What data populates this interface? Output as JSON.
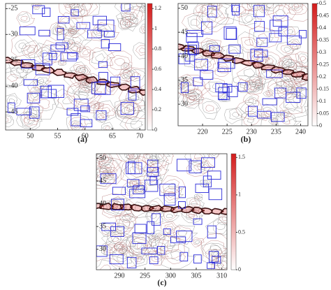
{
  "chart_data": [
    {
      "type": "contour",
      "label": "(a)",
      "xlim": [
        45.5,
        71
      ],
      "xticks": [
        50,
        55,
        60,
        65,
        70
      ],
      "ylim": [
        -48.5,
        -24
      ],
      "yticks": [
        -45,
        -40,
        -35,
        -30,
        -25
      ],
      "clim": [
        0,
        1.25
      ],
      "cbar_ticks": [
        0,
        0.2,
        0.4,
        0.6,
        0.8,
        1,
        1.2
      ],
      "cmap_colors": [
        "#ffffff",
        "#d41c1c"
      ],
      "box_color": "#2a2ad8"
    },
    {
      "type": "contour",
      "label": "(b)",
      "xlim": [
        215,
        241.5
      ],
      "xticks": [
        220,
        225,
        230,
        235,
        240
      ],
      "ylim": [
        25.5,
        51
      ],
      "yticks": [
        30,
        35,
        40,
        45,
        50
      ],
      "clim": [
        0,
        0.5
      ],
      "cbar_ticks": [
        0,
        0.05,
        0.1,
        0.15,
        0.2,
        0.25,
        0.3,
        0.35,
        0.4,
        0.45,
        0.5
      ],
      "cmap_colors": [
        "#ffffff",
        "#d41c1c"
      ],
      "box_color": "#2a2ad8"
    },
    {
      "type": "contour",
      "label": "(c)",
      "xlim": [
        285.5,
        311
      ],
      "xticks": [
        290,
        295,
        300,
        305,
        310
      ],
      "ylim": [
        25.5,
        51
      ],
      "yticks": [
        30,
        35,
        40,
        45,
        50
      ],
      "clim": [
        0,
        1.55
      ],
      "cbar_ticks": [
        0,
        0.5,
        1,
        1.5
      ],
      "cmap_colors": [
        "#ffffff",
        "#d41c1c"
      ],
      "box_color": "#2a2ad8"
    }
  ]
}
